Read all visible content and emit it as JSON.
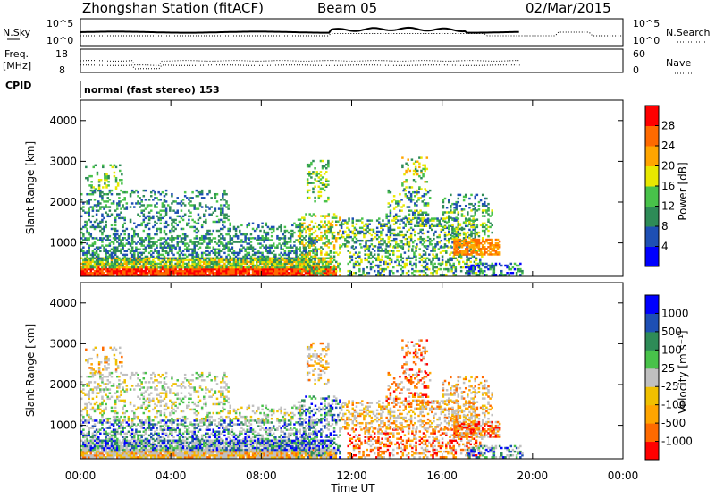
{
  "header": {
    "station": "Zhongshan Station (fitACF)",
    "beam": "Beam 05",
    "date": "02/Mar/2015"
  },
  "noise_panel": {
    "left_label": "N.Sky",
    "right_label": "N.Search",
    "left_ticks": [
      "10^5",
      "10^0"
    ],
    "right_ticks": [
      "10^5",
      "10^0"
    ]
  },
  "freq_panel": {
    "left_label_1": "Freq.",
    "left_label_2": "[MHz]",
    "right_label": "Nave",
    "left_ticks": [
      "18",
      "8"
    ],
    "right_ticks": [
      "60",
      "0"
    ]
  },
  "cpid": {
    "label": "CPID",
    "text": "normal (fast stereo) 153"
  },
  "x_axis": {
    "label": "Time UT",
    "ticks": [
      "00:00",
      "04:00",
      "08:00",
      "12:00",
      "16:00",
      "20:00",
      "00:00"
    ]
  },
  "colors": {
    "power": [
      "#0000ff",
      "#1e4fb4",
      "#2e8b57",
      "#48c24a",
      "#e8e800",
      "#ffa500",
      "#ff6a00",
      "#ff0000"
    ],
    "velocity": [
      "#ff0000",
      "#ff6a00",
      "#ffa500",
      "#f0c000",
      "#c0c0c0",
      "#48c24a",
      "#2e8b57",
      "#1e4fb4",
      "#0000ff"
    ]
  },
  "chart_data": [
    {
      "type": "heatmap",
      "name": "power",
      "ylabel": "Slant Range [km]",
      "yticks": [
        "1000",
        "2000",
        "3000",
        "4000"
      ],
      "ylim": [
        180,
        4500
      ],
      "xlim_hours": [
        0,
        24
      ],
      "colorbar_label": "Power [dB]",
      "colorbar_ticks": [
        "4",
        "8",
        "12",
        "16",
        "20",
        "24",
        "28"
      ],
      "colorbar_range": [
        0,
        32
      ]
    },
    {
      "type": "heatmap",
      "name": "velocity",
      "ylabel": "Slant Range [km]",
      "yticks": [
        "1000",
        "2000",
        "3000",
        "4000"
      ],
      "ylim": [
        180,
        4500
      ],
      "xlim_hours": [
        0,
        24
      ],
      "colorbar_label": "Velocity [m s⁻¹]",
      "colorbar_ticks": [
        "1000",
        "500",
        "100",
        "25",
        "-25",
        "-100",
        "-500",
        "-1000"
      ]
    }
  ]
}
